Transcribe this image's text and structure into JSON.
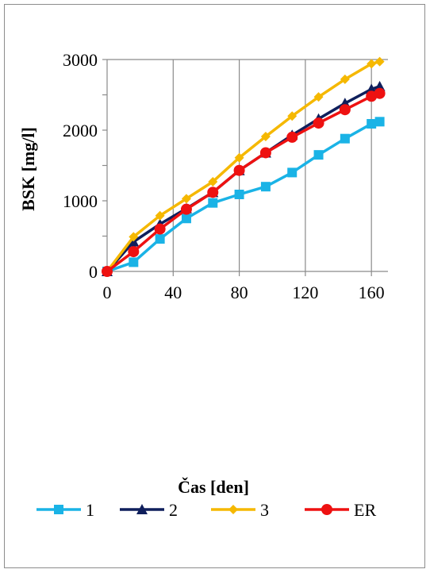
{
  "chart_data": {
    "type": "line",
    "title": "",
    "xlabel": "Čas [den]",
    "ylabel": "BSK [mg/l]",
    "xlim": [
      0,
      170
    ],
    "ylim": [
      0,
      3000
    ],
    "x_ticks": [
      0,
      40,
      80,
      120,
      160
    ],
    "x_tick_labels": [
      "0",
      "40",
      "80",
      "120",
      "160"
    ],
    "y_ticks": [
      0,
      1000,
      2000,
      3000
    ],
    "y_tick_labels": [
      "0",
      "1000",
      "2000",
      "3000"
    ],
    "grid": "vertical",
    "legend_position": "bottom",
    "series": [
      {
        "name": "1",
        "color": "#1ab3e6",
        "marker": "square",
        "x": [
          0,
          16,
          32,
          48,
          64,
          80,
          96,
          112,
          128,
          144,
          160,
          165
        ],
        "y": [
          0,
          130,
          460,
          750,
          970,
          1090,
          1200,
          1400,
          1650,
          1880,
          2090,
          2120
        ]
      },
      {
        "name": "2",
        "color": "#0f1f5c",
        "marker": "triangle",
        "x": [
          0,
          16,
          32,
          48,
          64,
          80,
          96,
          112,
          128,
          144,
          160,
          165
        ],
        "y": [
          0,
          420,
          670,
          890,
          1120,
          1430,
          1680,
          1930,
          2160,
          2380,
          2580,
          2620
        ]
      },
      {
        "name": "3",
        "color": "#f5b800",
        "marker": "diamond",
        "x": [
          0,
          16,
          32,
          48,
          64,
          80,
          96,
          112,
          128,
          144,
          160,
          165
        ],
        "y": [
          0,
          490,
          790,
          1030,
          1270,
          1610,
          1910,
          2200,
          2470,
          2720,
          2940,
          2970
        ]
      },
      {
        "name": "ER",
        "color": "#ee1111",
        "marker": "circle",
        "x": [
          0,
          16,
          32,
          48,
          64,
          80,
          96,
          112,
          128,
          144,
          160,
          165
        ],
        "y": [
          0,
          280,
          600,
          880,
          1120,
          1430,
          1680,
          1900,
          2100,
          2290,
          2480,
          2520
        ]
      }
    ]
  }
}
